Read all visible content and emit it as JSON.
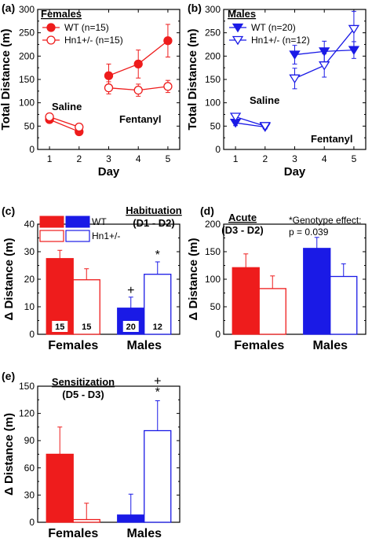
{
  "colors": {
    "red": "#ee1c1c",
    "blue": "#1a1ae6",
    "black": "#000000"
  },
  "chart_data": [
    {
      "panel": "(a)",
      "type": "line",
      "ylabel": "Total Distance (m)",
      "xlabel": "Day",
      "xlim": [
        0.6,
        5.4
      ],
      "ylim": [
        0,
        300
      ],
      "yticks": [
        0,
        50,
        100,
        150,
        200,
        250,
        300
      ],
      "xticks": [
        1,
        2,
        3,
        4,
        5
      ],
      "legend_title": "Females",
      "annotations": [
        "Saline",
        "Fentanyl"
      ],
      "segments": [
        [
          1,
          2
        ],
        [
          3,
          4,
          5
        ]
      ],
      "series": [
        {
          "name": "WT (n=15)",
          "color": "#ee1c1c",
          "marker": "circle",
          "filled": true,
          "x": [
            1,
            2,
            3,
            4,
            5
          ],
          "y": [
            64,
            38,
            158,
            183,
            233
          ],
          "err": [
            5,
            5,
            25,
            30,
            35
          ]
        },
        {
          "name": "Hn1+/- (n=15)",
          "color": "#ee1c1c",
          "marker": "circle",
          "filled": false,
          "x": [
            1,
            2,
            3,
            4,
            5
          ],
          "y": [
            70,
            48,
            132,
            127,
            135
          ],
          "err": [
            5,
            5,
            13,
            13,
            13
          ]
        }
      ]
    },
    {
      "panel": "(b)",
      "type": "line",
      "ylabel": "Total Distance (m)",
      "xlabel": "Day",
      "xlim": [
        0.6,
        5.4
      ],
      "ylim": [
        0,
        300
      ],
      "yticks": [
        0,
        50,
        100,
        150,
        200,
        250,
        300
      ],
      "xticks": [
        1,
        2,
        3,
        4,
        5
      ],
      "legend_title": "Males",
      "annotations": [
        "Saline",
        "Fentanyl"
      ],
      "segments": [
        [
          1,
          2
        ],
        [
          3,
          4,
          5
        ]
      ],
      "series": [
        {
          "name": "WT (n=20)",
          "color": "#1a1ae6",
          "marker": "triangle-down",
          "filled": true,
          "x": [
            1,
            2,
            3,
            4,
            5
          ],
          "y": [
            57,
            48,
            203,
            210,
            213
          ],
          "err": [
            6,
            4,
            20,
            22,
            18
          ]
        },
        {
          "name": "Hn1+/- (n=12)",
          "color": "#1a1ae6",
          "marker": "triangle-down",
          "filled": false,
          "x": [
            1,
            2,
            3,
            4,
            5
          ],
          "y": [
            70,
            50,
            152,
            180,
            258
          ],
          "err": [
            6,
            4,
            22,
            25,
            38
          ]
        }
      ]
    },
    {
      "panel": "(c)",
      "type": "bar",
      "ylabel": "Δ Distance (m)",
      "categories": [
        "Females",
        "Males"
      ],
      "ylim": [
        0,
        40
      ],
      "yticks": [
        0,
        10,
        20,
        30,
        40
      ],
      "title": "Habituation",
      "subtitle": "(D1 - D2)",
      "legend": [
        "WT",
        "Hn1+/-"
      ],
      "series": [
        {
          "name": "WT",
          "values": [
            27.5,
            9.5
          ],
          "err": [
            3,
            4
          ],
          "n": [
            "15",
            "20"
          ],
          "colors": [
            "#ee1c1c",
            "#1a1ae6"
          ],
          "filled": true
        },
        {
          "name": "Hn1+/-",
          "values": [
            19.8,
            21.8
          ],
          "err": [
            4,
            4.5
          ],
          "n": [
            "15",
            "12"
          ],
          "colors": [
            "#ee1c1c",
            "#1a1ae6"
          ],
          "filled": false
        }
      ],
      "marks": [
        {
          "category": 1,
          "series": 0,
          "text": "+"
        },
        {
          "category": 1,
          "series": 1,
          "text": "*"
        }
      ]
    },
    {
      "panel": "(d)",
      "type": "bar",
      "ylabel": "Δ Distance (m)",
      "categories": [
        "Females",
        "Males"
      ],
      "ylim": [
        0,
        200
      ],
      "yticks": [
        0,
        50,
        100,
        150,
        200
      ],
      "title": "Acute",
      "subtitle": "(D3 - D2)",
      "note": [
        "*Genotype effect:",
        "p = 0.039"
      ],
      "series": [
        {
          "name": "WT",
          "values": [
            121,
            156
          ],
          "err": [
            25,
            20
          ],
          "colors": [
            "#ee1c1c",
            "#1a1ae6"
          ],
          "filled": true
        },
        {
          "name": "Hn1+/-",
          "values": [
            83,
            105
          ],
          "err": [
            23,
            23
          ],
          "colors": [
            "#ee1c1c",
            "#1a1ae6"
          ],
          "filled": false
        }
      ],
      "marks": []
    },
    {
      "panel": "(e)",
      "type": "bar",
      "ylabel": "Δ Distance (m)",
      "categories": [
        "Females",
        "Males"
      ],
      "ylim": [
        0,
        150
      ],
      "yticks": [
        0,
        30,
        60,
        90,
        120,
        150
      ],
      "title": "Sensitization",
      "subtitle": "(D5 - D3)",
      "series": [
        {
          "name": "WT",
          "values": [
            75,
            8
          ],
          "err": [
            30,
            23
          ],
          "colors": [
            "#ee1c1c",
            "#1a1ae6"
          ],
          "filled": true
        },
        {
          "name": "Hn1+/-",
          "values": [
            3,
            101
          ],
          "err": [
            18,
            33
          ],
          "colors": [
            "#ee1c1c",
            "#1a1ae6"
          ],
          "filled": false
        }
      ],
      "marks": [
        {
          "category": 1,
          "series": 1,
          "text": "+"
        },
        {
          "category": 1,
          "series": 1,
          "text": "*"
        }
      ]
    }
  ]
}
